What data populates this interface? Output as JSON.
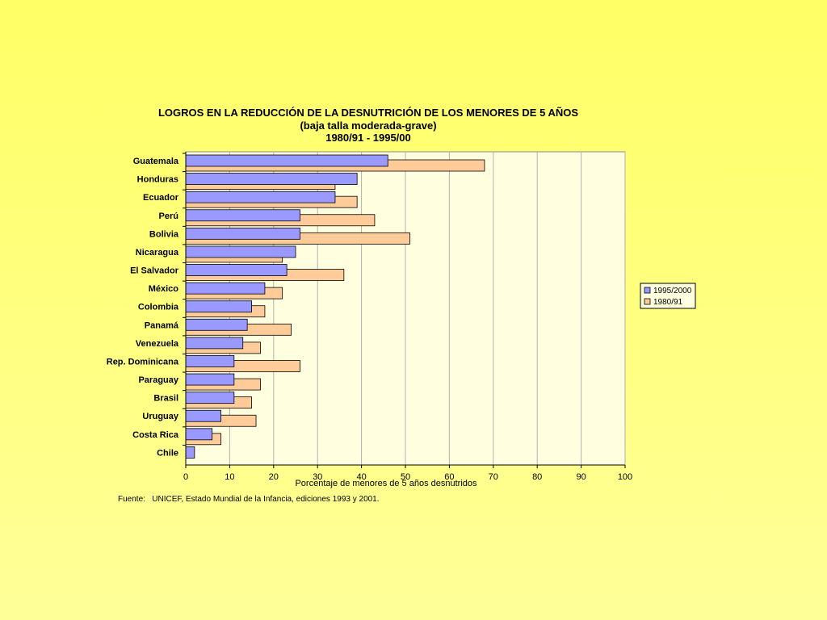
{
  "chart_data": {
    "type": "bar",
    "orientation": "horizontal",
    "title": [
      "LOGROS EN LA REDUCCIÓN DE LA DESNUTRICIÓN DE LOS MENORES DE 5 AÑOS",
      "(baja talla moderada-grave)",
      "1980/91 - 1995/00"
    ],
    "categories": [
      "Guatemala",
      "Honduras",
      "Ecuador",
      "Perú",
      "Bolivia",
      "Nicaragua",
      "El Salvador",
      "México",
      "Colombia",
      "Panamá",
      "Venezuela",
      "Rep. Dominicana",
      "Paraguay",
      "Brasil",
      "Uruguay",
      "Costa Rica",
      "Chile"
    ],
    "series": [
      {
        "name": "1995/2000",
        "color": "#9999ff",
        "values": [
          46,
          39,
          34,
          26,
          26,
          25,
          23,
          18,
          15,
          14,
          13,
          11,
          11,
          11,
          8,
          6,
          2
        ]
      },
      {
        "name": "1980/91",
        "color": "#ffcc99",
        "values": [
          68,
          34,
          39,
          43,
          51,
          22,
          36,
          22,
          18,
          24,
          17,
          26,
          17,
          15,
          16,
          8,
          0
        ]
      }
    ],
    "xlabel": "Porcentaje de menores de 5 años desnutridos",
    "ylabel": "",
    "xlim": [
      0,
      100
    ],
    "xticks": [
      0,
      10,
      20,
      30,
      40,
      50,
      60,
      70,
      80,
      90,
      100
    ],
    "grid": true,
    "legend": "right",
    "plot_background": "#ffffe0"
  },
  "source": "Fuente:   UNICEF, Estado Mundial de la Infancia, ediciones 1993 y 2001."
}
